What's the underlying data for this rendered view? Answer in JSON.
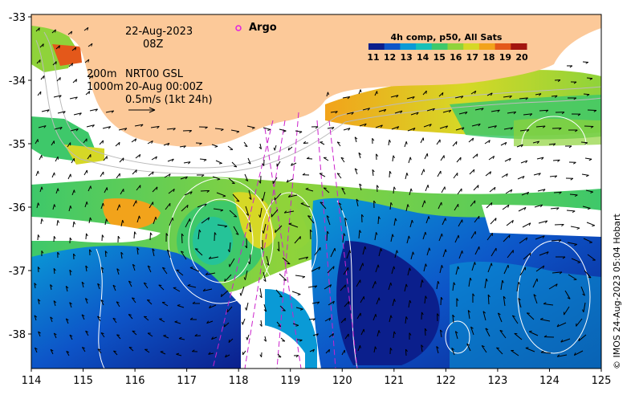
{
  "map": {
    "date_line": "22-Aug-2023",
    "time_line": "08Z",
    "argo_label": "Argo",
    "isobath_label": "200m",
    "isobath2_label": "1000m",
    "altimetry_label": "NRT00 GSL",
    "altimetry_date": "20-Aug 00:00Z",
    "velocity_scale": "0.5m/s (1kt 24h)",
    "credit": "© IMOS 24-Aug-2023 05:04 Hobart",
    "colorbar": {
      "title": "4h comp, p50, All Sats",
      "ticks": [
        "11",
        "12",
        "13",
        "14",
        "15",
        "16",
        "17",
        "18",
        "19",
        "20"
      ],
      "colors": [
        "#0b1f8c",
        "#0d55c8",
        "#0a9ad6",
        "#16c0b8",
        "#3ec86a",
        "#8fd33a",
        "#d6d826",
        "#f2a31b",
        "#e4581a",
        "#a3150f"
      ]
    },
    "x_axis": {
      "ticks": [
        "114",
        "115",
        "116",
        "117",
        "118",
        "119",
        "120",
        "121",
        "122",
        "123",
        "124",
        "125"
      ]
    },
    "y_axis": {
      "ticks": [
        "-33",
        "-34",
        "-35",
        "-36",
        "-37",
        "-38"
      ]
    },
    "colors": {
      "land": "#fcc999",
      "argo": "#e020e0",
      "track": "#cc22cc"
    }
  }
}
